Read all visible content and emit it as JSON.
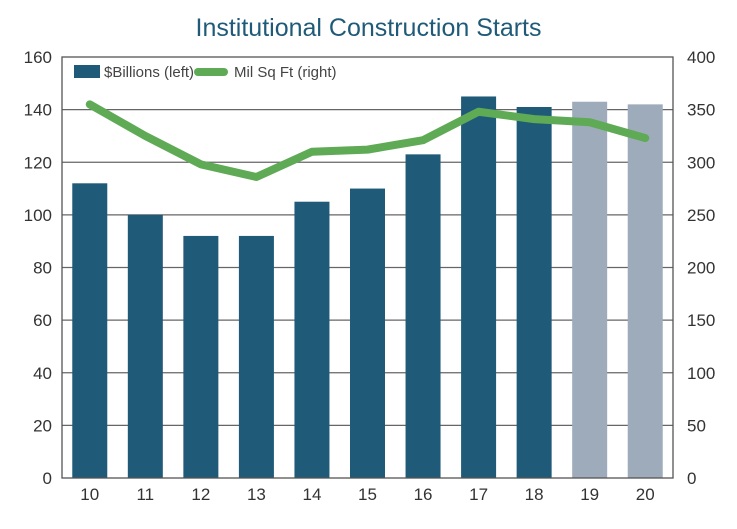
{
  "chart_data": {
    "type": "bar",
    "title": "Institutional Construction Starts",
    "categories": [
      "10",
      "11",
      "12",
      "13",
      "14",
      "15",
      "16",
      "17",
      "18",
      "19",
      "20"
    ],
    "series": [
      {
        "name": "$Billions (left)",
        "type": "bar",
        "axis": "left",
        "values": [
          112,
          100,
          92,
          92,
          105,
          110,
          123,
          145,
          141,
          143,
          142
        ],
        "colors": [
          "#1f5a78",
          "#1f5a78",
          "#1f5a78",
          "#1f5a78",
          "#1f5a78",
          "#1f5a78",
          "#1f5a78",
          "#1f5a78",
          "#1f5a78",
          "#9eabba",
          "#9eabba"
        ]
      },
      {
        "name": "Mil Sq Ft (right)",
        "type": "line",
        "axis": "right",
        "values": [
          355,
          325,
          298,
          286,
          310,
          312,
          321,
          348,
          341,
          338,
          323
        ],
        "color": "#5faa55"
      }
    ],
    "ylim_left": [
      0,
      160
    ],
    "yticks_left": [
      0,
      20,
      40,
      60,
      80,
      100,
      120,
      140,
      160
    ],
    "ylim_right": [
      0,
      400
    ],
    "yticks_right": [
      0,
      50,
      100,
      150,
      200,
      250,
      300,
      350,
      400
    ],
    "grid": true,
    "legend": "top-left"
  }
}
